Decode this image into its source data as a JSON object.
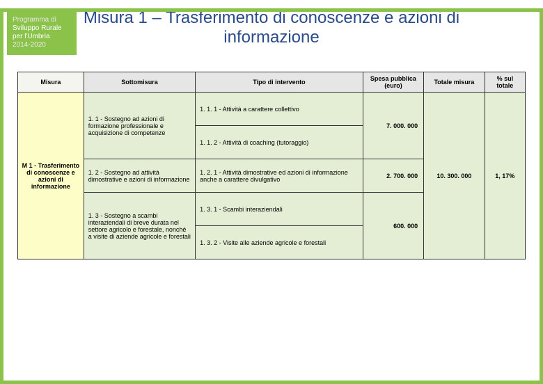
{
  "badge": {
    "line1": "Programma di",
    "line2": "Sviluppo Rurale",
    "line3": "per l'Umbria",
    "line4": "2014-2020"
  },
  "title": "Misura 1 – Trasferimento di conoscenze e azioni di informazione",
  "headers": {
    "misura": "Misura",
    "sottomisura": "Sottomisura",
    "tipo": "Tipo di intervento",
    "spesa": "Spesa pubblica (euro)",
    "totale": "Totale misura",
    "pct": "% sul totale"
  },
  "misura_label": "M 1 - Trasferimento di conoscenze e azioni di informazione",
  "sub": {
    "s1": "1. 1 - Sostegno ad azioni di formazione professionale e acquisizione di competenze",
    "s2": "1. 2 - Sostegno ad attività dimostrative e azioni di informazione",
    "s3": "1. 3 - Sostegno a scambi interaziendali di breve durata nel settore agricolo e forestale, nonché a visite di aziende agricole e forestali"
  },
  "tipo": {
    "t111": "1. 1. 1 - Attività a carattere collettivo",
    "t112": "1. 1. 2 - Attività di coaching (tutoraggio)",
    "t121": "1. 2. 1 - Attività dimostrative ed azioni di informazione anche a carattere divulgativo",
    "t131": "1. 3. 1 - Scambi interaziendali",
    "t132": "1. 3. 2 - Visite alle aziende agricole e forestali"
  },
  "spesa": {
    "v1": "7. 000. 000",
    "v2": "2. 700. 000",
    "v3": "600. 000"
  },
  "totale": "10. 300. 000",
  "pct": "1, 17%",
  "colors": {
    "accent": "#8bc34a",
    "title": "#2a4a8a",
    "header_bg": "#e6e6e6",
    "body_bg": "#e4eed4",
    "misura_bg": "#fdfdc7"
  }
}
